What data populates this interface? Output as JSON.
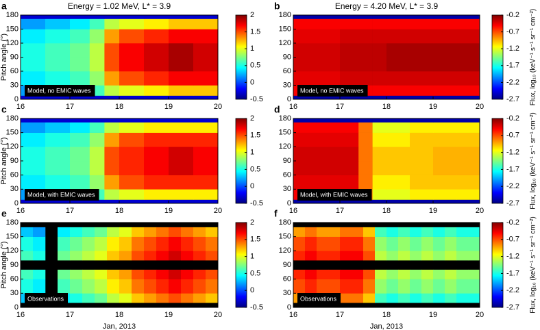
{
  "chart_data": [
    {
      "type": "heatmap",
      "letter": "a",
      "title": "Energy = 1.02 MeV, L* = 3.9",
      "ylabel": "Pitch angle (°)",
      "annotation": "Model, no EMIC waves",
      "xlim": [
        16,
        20
      ],
      "xticks": [
        16,
        17,
        18,
        19,
        20
      ],
      "ylim": [
        0,
        180
      ],
      "yticks": [
        0,
        30,
        60,
        90,
        120,
        150,
        180
      ],
      "x_edges": [
        16,
        16.5,
        17,
        17.4,
        17.7,
        18,
        18.5,
        19,
        19.5,
        20
      ],
      "y_edges": [
        0,
        8,
        30,
        60,
        90,
        120,
        150,
        172,
        180
      ],
      "z": [
        [
          -0.3,
          -0.3,
          -0.3,
          -0.3,
          -0.3,
          -0.3,
          -0.3,
          -0.3,
          -0.3
        ],
        [
          0.2,
          0.3,
          0.4,
          0.6,
          0.9,
          1.0,
          1.1,
          1.2,
          1.2
        ],
        [
          0.4,
          0.5,
          0.6,
          0.8,
          1.3,
          1.5,
          1.6,
          1.7,
          1.7
        ],
        [
          0.5,
          0.6,
          0.7,
          0.9,
          1.5,
          1.7,
          1.8,
          1.9,
          1.8
        ],
        [
          0.5,
          0.6,
          0.7,
          0.9,
          1.5,
          1.7,
          1.8,
          1.9,
          1.8
        ],
        [
          0.4,
          0.5,
          0.6,
          0.8,
          1.3,
          1.5,
          1.6,
          1.7,
          1.7
        ],
        [
          0.2,
          0.3,
          0.4,
          0.6,
          0.9,
          1.0,
          1.1,
          1.2,
          1.2
        ],
        [
          -0.3,
          -0.3,
          -0.3,
          -0.3,
          -0.3,
          -0.3,
          -0.3,
          -0.3,
          -0.3
        ]
      ],
      "zlim": [
        -0.5,
        2
      ],
      "zticks": [
        -0.5,
        0,
        0.5,
        1,
        1.5,
        2
      ]
    },
    {
      "type": "heatmap",
      "letter": "b",
      "title": "Energy = 4.20 MeV, L* = 3.9",
      "annotation": "Model, no EMIC waves",
      "colorbar_label": "Flux, log₁₀ (keV⁻¹ s⁻¹ sr⁻¹ cm⁻²)",
      "xlim": [
        16,
        20
      ],
      "xticks": [
        16,
        17,
        18,
        19,
        20
      ],
      "ylim": [
        0,
        180
      ],
      "yticks": [
        0,
        30,
        60,
        90,
        120,
        150,
        180
      ],
      "x_edges": [
        16,
        16.5,
        17,
        17.4,
        17.7,
        18,
        18.5,
        19,
        19.5,
        20
      ],
      "y_edges": [
        0,
        8,
        30,
        60,
        90,
        120,
        150,
        172,
        180
      ],
      "z": [
        [
          -2.6,
          -2.6,
          -2.6,
          -2.6,
          -2.6,
          -2.6,
          -2.6,
          -2.6,
          -2.6
        ],
        [
          -0.5,
          -0.5,
          -0.5,
          -0.5,
          -0.5,
          -0.5,
          -0.5,
          -0.5,
          -0.5
        ],
        [
          -0.45,
          -0.45,
          -0.4,
          -0.4,
          -0.4,
          -0.4,
          -0.4,
          -0.4,
          -0.4
        ],
        [
          -0.4,
          -0.4,
          -0.35,
          -0.35,
          -0.35,
          -0.3,
          -0.3,
          -0.3,
          -0.3
        ],
        [
          -0.4,
          -0.4,
          -0.35,
          -0.35,
          -0.35,
          -0.3,
          -0.3,
          -0.3,
          -0.3
        ],
        [
          -0.45,
          -0.45,
          -0.4,
          -0.4,
          -0.4,
          -0.4,
          -0.4,
          -0.4,
          -0.4
        ],
        [
          -0.5,
          -0.5,
          -0.5,
          -0.5,
          -0.5,
          -0.5,
          -0.5,
          -0.5,
          -0.5
        ],
        [
          -2.6,
          -2.6,
          -2.6,
          -2.6,
          -2.6,
          -2.6,
          -2.6,
          -2.6,
          -2.6
        ]
      ],
      "zlim": [
        -2.7,
        -0.2
      ],
      "zticks": [
        -2.7,
        -2.2,
        -1.7,
        -1.2,
        -0.7,
        -0.2
      ]
    },
    {
      "type": "heatmap",
      "letter": "c",
      "ylabel": "Pitch angle (°)",
      "annotation": "Model, with EMIC waves",
      "xlim": [
        16,
        20
      ],
      "xticks": [
        16,
        17,
        18,
        19,
        20
      ],
      "ylim": [
        0,
        180
      ],
      "yticks": [
        0,
        30,
        60,
        90,
        120,
        150,
        180
      ],
      "x_edges": [
        16,
        16.5,
        17,
        17.4,
        17.7,
        18,
        18.5,
        19,
        19.5,
        20
      ],
      "y_edges": [
        0,
        8,
        30,
        60,
        90,
        120,
        150,
        172,
        180
      ],
      "z": [
        [
          -0.3,
          -0.3,
          -0.3,
          -0.3,
          -0.3,
          -0.3,
          -0.3,
          -0.3,
          -0.3
        ],
        [
          0.2,
          0.3,
          0.4,
          0.6,
          0.9,
          1.0,
          1.1,
          1.1,
          1.1
        ],
        [
          0.4,
          0.5,
          0.6,
          0.8,
          1.3,
          1.5,
          1.6,
          1.6,
          1.6
        ],
        [
          0.5,
          0.6,
          0.7,
          0.9,
          1.5,
          1.6,
          1.7,
          1.8,
          1.7
        ],
        [
          0.5,
          0.6,
          0.7,
          0.9,
          1.5,
          1.6,
          1.7,
          1.8,
          1.7
        ],
        [
          0.4,
          0.5,
          0.6,
          0.8,
          1.3,
          1.5,
          1.6,
          1.6,
          1.6
        ],
        [
          0.2,
          0.3,
          0.4,
          0.6,
          0.9,
          1.0,
          1.1,
          1.1,
          1.1
        ],
        [
          -0.3,
          -0.3,
          -0.3,
          -0.3,
          -0.3,
          -0.3,
          -0.3,
          -0.3,
          -0.3
        ]
      ],
      "zlim": [
        -0.5,
        2
      ],
      "zticks": [
        -0.5,
        0,
        0.5,
        1,
        1.5,
        2
      ]
    },
    {
      "type": "heatmap",
      "letter": "d",
      "annotation": "Model, with EMIC waves",
      "colorbar_label": "Flux, log₁₀ (keV⁻¹ s⁻¹ sr⁻¹ cm⁻²)",
      "xlim": [
        16,
        20
      ],
      "xticks": [
        16,
        17,
        18,
        19,
        20
      ],
      "ylim": [
        0,
        180
      ],
      "yticks": [
        0,
        30,
        60,
        90,
        120,
        150,
        180
      ],
      "x_edges": [
        16,
        16.5,
        17,
        17.4,
        17.7,
        18,
        18.5,
        19,
        19.5,
        20
      ],
      "y_edges": [
        0,
        8,
        30,
        60,
        90,
        120,
        150,
        172,
        180
      ],
      "z": [
        [
          -2.6,
          -2.6,
          -2.6,
          -2.6,
          -2.6,
          -2.6,
          -2.6,
          -2.6,
          -2.6
        ],
        [
          -0.5,
          -0.5,
          -0.5,
          -0.8,
          -1.2,
          -1.2,
          -1.1,
          -1.1,
          -1.1
        ],
        [
          -0.45,
          -0.45,
          -0.45,
          -0.8,
          -1.1,
          -1.1,
          -1.0,
          -1.0,
          -1.0
        ],
        [
          -0.4,
          -0.4,
          -0.4,
          -0.8,
          -1.0,
          -1.0,
          -1.0,
          -0.95,
          -0.95
        ],
        [
          -0.4,
          -0.4,
          -0.4,
          -0.8,
          -1.0,
          -1.0,
          -1.0,
          -0.95,
          -0.95
        ],
        [
          -0.45,
          -0.45,
          -0.45,
          -0.8,
          -1.1,
          -1.1,
          -1.0,
          -1.0,
          -1.0
        ],
        [
          -0.5,
          -0.5,
          -0.5,
          -0.8,
          -1.2,
          -1.2,
          -1.1,
          -1.1,
          -1.1
        ],
        [
          -2.6,
          -2.6,
          -2.6,
          -2.6,
          -2.6,
          -2.6,
          -2.6,
          -2.6,
          -2.6
        ]
      ],
      "zlim": [
        -2.7,
        -0.2
      ],
      "zticks": [
        -2.7,
        -2.2,
        -1.7,
        -1.2,
        -0.7,
        -0.2
      ]
    },
    {
      "type": "heatmap",
      "letter": "e",
      "ylabel": "Pitch angle (°)",
      "xlabel": "Jan, 2013",
      "annotation": "Observations",
      "xlim": [
        16,
        20
      ],
      "xticks": [
        16,
        17,
        18,
        19,
        20
      ],
      "ylim": [
        0,
        180
      ],
      "yticks": [
        0,
        30,
        60,
        90,
        120,
        150,
        180
      ],
      "x_edges": [
        16,
        16.25,
        16.5,
        16.75,
        17,
        17.25,
        17.5,
        17.75,
        18,
        18.25,
        18.5,
        18.75,
        19,
        19.25,
        19.5,
        19.75,
        20
      ],
      "y_edges": [
        0,
        10,
        30,
        60,
        80,
        100,
        120,
        150,
        170,
        180
      ],
      "z": [
        [
          null,
          null,
          null,
          null,
          null,
          null,
          null,
          null,
          null,
          null,
          null,
          null,
          null,
          null,
          null,
          null
        ],
        [
          0.3,
          0.2,
          null,
          0.4,
          0.5,
          0.6,
          0.7,
          0.9,
          1.0,
          1.2,
          1.3,
          1.4,
          1.5,
          1.4,
          1.3,
          1.2
        ],
        [
          0.5,
          0.4,
          null,
          0.6,
          0.7,
          0.8,
          0.9,
          1.1,
          1.2,
          1.4,
          1.5,
          1.6,
          1.7,
          1.6,
          1.5,
          1.4
        ],
        [
          0.6,
          0.5,
          null,
          0.7,
          0.8,
          0.9,
          1.0,
          1.2,
          1.3,
          1.5,
          1.6,
          1.7,
          1.8,
          1.7,
          1.6,
          1.5
        ],
        [
          null,
          null,
          null,
          null,
          null,
          null,
          null,
          null,
          null,
          null,
          null,
          null,
          null,
          null,
          null,
          null
        ],
        [
          0.6,
          0.5,
          null,
          0.7,
          0.8,
          0.9,
          1.0,
          1.2,
          1.3,
          1.5,
          1.6,
          1.7,
          1.8,
          1.7,
          1.6,
          1.5
        ],
        [
          0.5,
          0.4,
          null,
          0.6,
          0.7,
          0.8,
          0.9,
          1.1,
          1.2,
          1.4,
          1.5,
          1.6,
          1.7,
          1.6,
          1.5,
          1.4
        ],
        [
          0.3,
          0.2,
          null,
          0.4,
          0.5,
          0.6,
          0.7,
          0.9,
          1.0,
          1.2,
          1.3,
          1.4,
          1.5,
          1.4,
          1.3,
          1.2
        ],
        [
          null,
          null,
          null,
          null,
          null,
          null,
          null,
          null,
          null,
          null,
          null,
          null,
          null,
          null,
          null,
          null
        ]
      ],
      "zlim": [
        -0.5,
        2
      ],
      "zticks": [
        -0.5,
        0,
        0.5,
        1,
        1.5,
        2
      ]
    },
    {
      "type": "heatmap",
      "letter": "f",
      "xlabel": "Jan, 2013",
      "annotation": "Observations",
      "colorbar_label": "Flux, log₁₀ (keV⁻¹ s⁻¹ sr⁻¹ cm⁻²)",
      "xlim": [
        16,
        20
      ],
      "xticks": [
        16,
        17,
        18,
        19,
        20
      ],
      "ylim": [
        0,
        180
      ],
      "yticks": [
        0,
        30,
        60,
        90,
        120,
        150,
        180
      ],
      "x_edges": [
        16,
        16.25,
        16.5,
        16.75,
        17,
        17.25,
        17.5,
        17.75,
        18,
        18.25,
        18.5,
        18.75,
        19,
        19.25,
        19.5,
        19.75,
        20
      ],
      "y_edges": [
        0,
        10,
        30,
        60,
        80,
        100,
        120,
        150,
        170,
        180
      ],
      "z": [
        [
          null,
          null,
          null,
          null,
          null,
          null,
          null,
          null,
          null,
          null,
          null,
          null,
          null,
          null,
          null,
          null
        ],
        [
          -0.9,
          -0.8,
          -0.9,
          -0.9,
          -0.8,
          -0.8,
          -1.0,
          -1.6,
          -1.7,
          -1.6,
          -1.7,
          -1.6,
          -1.7,
          -1.6,
          -1.7,
          -1.7
        ],
        [
          -0.7,
          -0.6,
          -0.7,
          -0.7,
          -0.6,
          -0.6,
          -0.8,
          -1.4,
          -1.5,
          -1.4,
          -1.5,
          -1.4,
          -1.5,
          -1.4,
          -1.5,
          -1.5
        ],
        [
          -0.6,
          -0.5,
          -0.6,
          -0.6,
          -0.5,
          -0.5,
          -0.7,
          -1.3,
          -1.4,
          -1.3,
          -1.4,
          -1.3,
          -1.4,
          -1.3,
          -1.4,
          -1.4
        ],
        [
          null,
          null,
          null,
          null,
          null,
          null,
          null,
          null,
          null,
          null,
          null,
          null,
          null,
          null,
          null,
          null
        ],
        [
          -0.6,
          -0.5,
          -0.6,
          -0.6,
          -0.5,
          -0.5,
          -0.7,
          -1.3,
          -1.4,
          -1.3,
          -1.4,
          -1.3,
          -1.4,
          -1.3,
          -1.4,
          -1.4
        ],
        [
          -0.7,
          -0.6,
          -0.7,
          -0.7,
          -0.6,
          -0.6,
          -0.8,
          -1.4,
          -1.5,
          -1.4,
          -1.5,
          -1.4,
          -1.5,
          -1.4,
          -1.5,
          -1.5
        ],
        [
          -0.9,
          -0.8,
          -0.9,
          -0.9,
          -0.8,
          -0.8,
          -1.0,
          -1.6,
          -1.7,
          -1.6,
          -1.7,
          -1.6,
          -1.7,
          -1.6,
          -1.7,
          -1.7
        ],
        [
          null,
          null,
          null,
          null,
          null,
          null,
          null,
          null,
          null,
          null,
          null,
          null,
          null,
          null,
          null,
          null
        ]
      ],
      "zlim": [
        -2.7,
        -0.2
      ],
      "zticks": [
        -2.7,
        -2.2,
        -1.7,
        -1.2,
        -0.7,
        -0.2
      ]
    }
  ]
}
